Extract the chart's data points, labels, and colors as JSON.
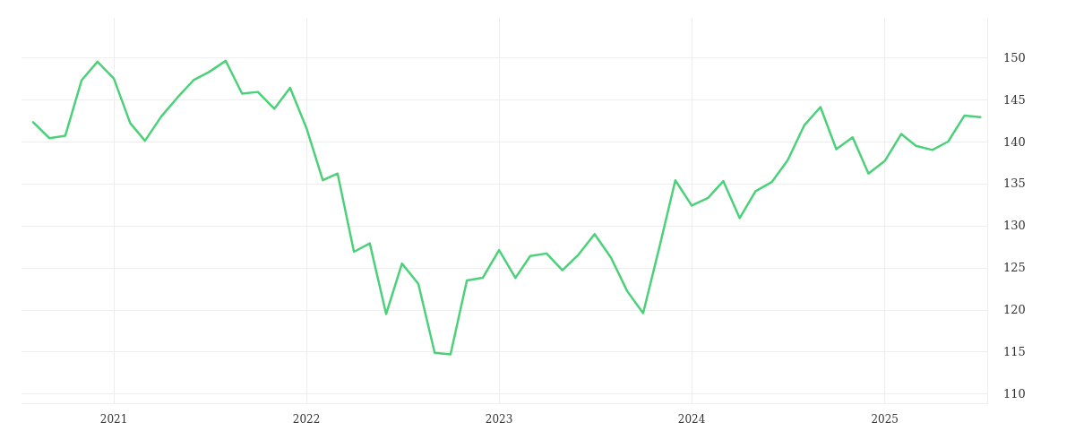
{
  "chart_data": {
    "type": "line",
    "x": [
      "2020-08",
      "2020-09",
      "2020-10",
      "2020-11",
      "2020-12",
      "2021-01",
      "2021-02",
      "2021-03",
      "2021-04",
      "2021-05",
      "2021-06",
      "2021-07",
      "2021-08",
      "2021-09",
      "2021-10",
      "2021-11",
      "2021-12",
      "2022-01",
      "2022-02",
      "2022-03",
      "2022-04",
      "2022-05",
      "2022-06",
      "2022-07",
      "2022-08",
      "2022-09",
      "2022-10",
      "2022-11",
      "2022-12",
      "2023-01",
      "2023-02",
      "2023-03",
      "2023-04",
      "2023-05",
      "2023-06",
      "2023-07",
      "2023-08",
      "2023-09",
      "2023-10",
      "2023-11",
      "2023-12",
      "2024-01",
      "2024-02",
      "2024-03",
      "2024-04",
      "2024-05",
      "2024-06",
      "2024-07",
      "2024-08",
      "2024-09",
      "2024-10",
      "2024-11",
      "2024-12",
      "2025-01",
      "2025-02",
      "2025-03",
      "2025-04",
      "2025-05",
      "2025-06",
      "2025-07"
    ],
    "series": [
      {
        "color": "#4cd17a",
        "values": [
          142.3,
          140.4,
          140.7,
          147.3,
          149.5,
          147.5,
          142.2,
          140.1,
          143.0,
          145.2,
          147.3,
          148.3,
          149.6,
          145.7,
          145.9,
          143.9,
          146.4,
          141.6,
          135.4,
          136.2,
          126.9,
          127.9,
          119.5,
          125.5,
          123.1,
          114.9,
          114.7,
          123.5,
          123.8,
          127.1,
          123.8,
          126.4,
          126.7,
          124.7,
          126.6,
          129.0,
          126.2,
          122.2,
          119.6,
          127.5,
          135.4,
          132.4,
          133.3,
          135.3,
          130.9,
          134.1,
          135.2,
          137.8,
          141.9,
          144.1,
          139.1,
          140.5,
          136.2,
          137.7,
          140.9,
          139.5,
          139.0,
          140.0,
          143.1,
          142.9
        ]
      }
    ],
    "xlim": [
      "2020-07-10",
      "2025-07-14"
    ],
    "xticks": [
      "2021",
      "2022",
      "2023",
      "2024",
      "2025"
    ],
    "ylim": [
      108.9,
      154.7
    ],
    "yticks": [
      110,
      115,
      120,
      125,
      130,
      135,
      140,
      145,
      150
    ],
    "grid": true,
    "marker": "none",
    "line_style": "solid"
  }
}
